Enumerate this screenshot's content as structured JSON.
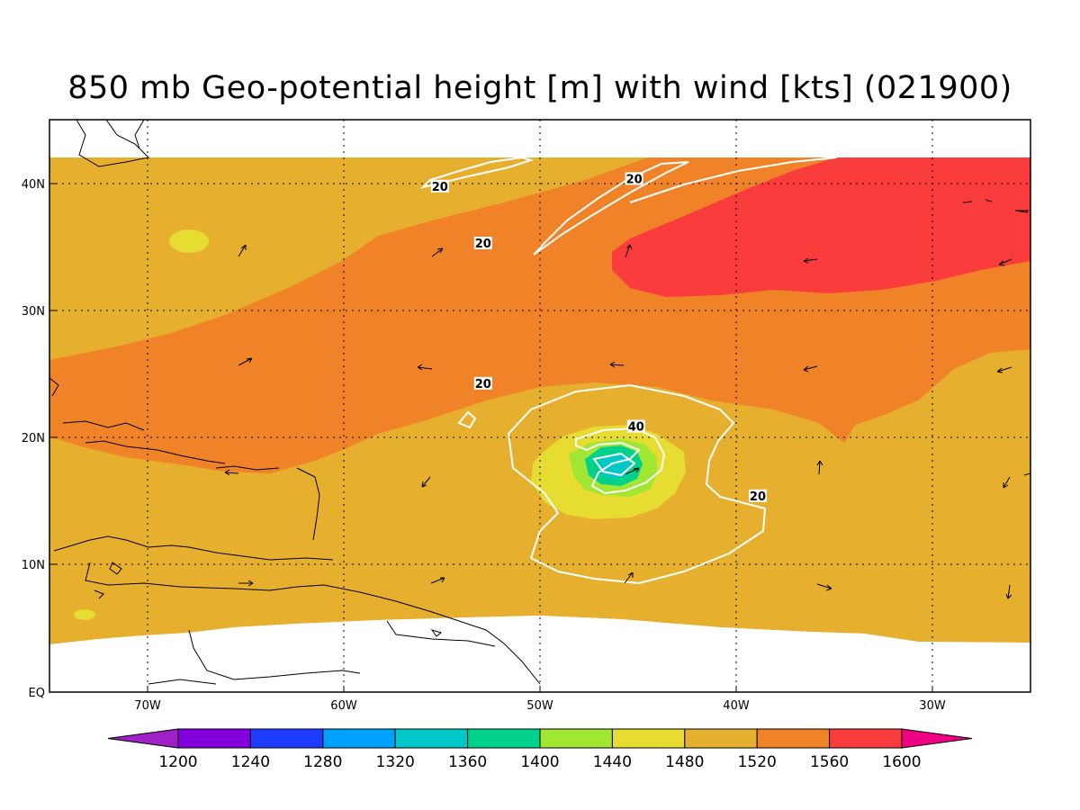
{
  "title": "850 mb Geo-potential height [m] with wind [kts] (021900)",
  "axes": {
    "lon_labels": [
      "70W",
      "60W",
      "50W",
      "40W",
      "30W"
    ],
    "lat_labels": [
      "40N",
      "30N",
      "20N",
      "10N",
      "EQ"
    ],
    "lon_range": [
      -75,
      -25
    ],
    "lat_range": [
      -0.3,
      45
    ]
  },
  "colorbar": {
    "ticks": [
      "1200",
      "1240",
      "1280",
      "1320",
      "1360",
      "1400",
      "1440",
      "1480",
      "1520",
      "1560",
      "1600"
    ],
    "colors": [
      "#a020c8",
      "#8200dc",
      "#1e3cff",
      "#00a0ff",
      "#00c8c8",
      "#00d28c",
      "#a0e632",
      "#e6dc32",
      "#e6af2d",
      "#f08228",
      "#fa3c3c",
      "#f00082"
    ]
  },
  "contour_labels": [
    {
      "text": "20",
      "lon": -55.1,
      "lat": 39.6
    },
    {
      "text": "20",
      "lon": -45.2,
      "lat": 40.2
    },
    {
      "text": "20",
      "lon": -52.9,
      "lat": 35.1
    },
    {
      "text": "20",
      "lon": -52.9,
      "lat": 24.0
    },
    {
      "text": "40",
      "lon": -45.1,
      "lat": 20.6
    },
    {
      "text": "20",
      "lon": -38.9,
      "lat": 15.1
    }
  ]
}
